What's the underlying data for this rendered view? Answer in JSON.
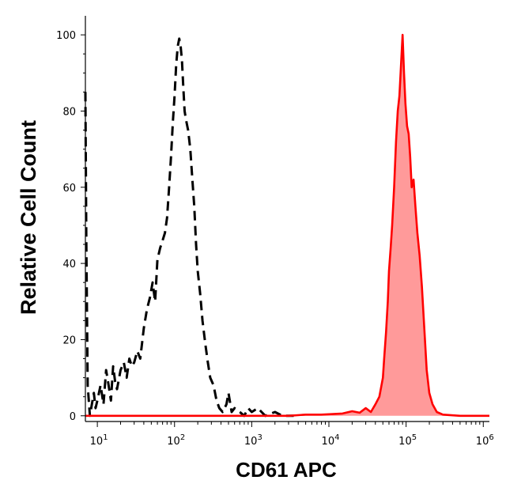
{
  "chart_data": {
    "type": "area",
    "title": "",
    "xlabel": "CD61 APC",
    "ylabel": "Relative Cell Count",
    "x_scale": "log",
    "xlim": [
      7,
      1200000
    ],
    "ylim": [
      -1.5,
      105
    ],
    "grid": false,
    "legend": "none",
    "x_ticks": [
      {
        "value": 10,
        "base": "10",
        "exp": "1"
      },
      {
        "value": 100,
        "base": "10",
        "exp": "2"
      },
      {
        "value": 1000,
        "base": "10",
        "exp": "3"
      },
      {
        "value": 10000,
        "base": "10",
        "exp": "4"
      },
      {
        "value": 100000,
        "base": "10",
        "exp": "5"
      },
      {
        "value": 1000000,
        "base": "10",
        "exp": "6"
      }
    ],
    "y_ticks": [
      {
        "value": 0,
        "label": "0"
      },
      {
        "value": 20,
        "label": "20"
      },
      {
        "value": 40,
        "label": "40"
      },
      {
        "value": 60,
        "label": "60"
      },
      {
        "value": 80,
        "label": "80"
      },
      {
        "value": 100,
        "label": "100"
      }
    ],
    "series": [
      {
        "style": "dashed",
        "color": "#000000",
        "points": [
          [
            7,
            85
          ],
          [
            7.2,
            45
          ],
          [
            7.5,
            8
          ],
          [
            8,
            0
          ],
          [
            8.5,
            3
          ],
          [
            9,
            6
          ],
          [
            9.5,
            2
          ],
          [
            10,
            4
          ],
          [
            11,
            8
          ],
          [
            12,
            3
          ],
          [
            13,
            12
          ],
          [
            14,
            8
          ],
          [
            15,
            4
          ],
          [
            16,
            13
          ],
          [
            17,
            9
          ],
          [
            18,
            7
          ],
          [
            20,
            12
          ],
          [
            22,
            14
          ],
          [
            24,
            10
          ],
          [
            26,
            15
          ],
          [
            28,
            13
          ],
          [
            30,
            14
          ],
          [
            33,
            17
          ],
          [
            36,
            15
          ],
          [
            40,
            23
          ],
          [
            44,
            28
          ],
          [
            48,
            31
          ],
          [
            52,
            35
          ],
          [
            56,
            30
          ],
          [
            60,
            41
          ],
          [
            65,
            44
          ],
          [
            70,
            46
          ],
          [
            75,
            48
          ],
          [
            80,
            52
          ],
          [
            85,
            60
          ],
          [
            90,
            68
          ],
          [
            95,
            77
          ],
          [
            100,
            84
          ],
          [
            105,
            92
          ],
          [
            110,
            97
          ],
          [
            115,
            99
          ],
          [
            120,
            97
          ],
          [
            125,
            93
          ],
          [
            130,
            86
          ],
          [
            135,
            80
          ],
          [
            140,
            78
          ],
          [
            150,
            75
          ],
          [
            160,
            70
          ],
          [
            170,
            62
          ],
          [
            180,
            55
          ],
          [
            190,
            45
          ],
          [
            200,
            38
          ],
          [
            215,
            32
          ],
          [
            230,
            25
          ],
          [
            250,
            19
          ],
          [
            270,
            14
          ],
          [
            290,
            10
          ],
          [
            320,
            8
          ],
          [
            350,
            4
          ],
          [
            380,
            2
          ],
          [
            420,
            1
          ],
          [
            470,
            3
          ],
          [
            500,
            6
          ],
          [
            550,
            1
          ],
          [
            600,
            2
          ],
          [
            700,
            1
          ],
          [
            800,
            0
          ],
          [
            900,
            2
          ],
          [
            1000,
            1
          ],
          [
            1200,
            2
          ],
          [
            1500,
            0
          ],
          [
            2000,
            1
          ],
          [
            2500,
            0
          ],
          [
            3500,
            0
          ]
        ]
      },
      {
        "style": "filled",
        "color": "#ff0000",
        "fill": "#ff9a9a",
        "points": [
          [
            7,
            0
          ],
          [
            1000,
            0
          ],
          [
            3000,
            0
          ],
          [
            5000,
            0.3
          ],
          [
            8000,
            0.3
          ],
          [
            15000,
            0.6
          ],
          [
            20000,
            1.2
          ],
          [
            25000,
            0.8
          ],
          [
            30000,
            2
          ],
          [
            35000,
            1
          ],
          [
            40000,
            3
          ],
          [
            45000,
            5
          ],
          [
            50000,
            10
          ],
          [
            52000,
            15
          ],
          [
            55000,
            22
          ],
          [
            58000,
            30
          ],
          [
            60000,
            38
          ],
          [
            63000,
            44
          ],
          [
            66000,
            50
          ],
          [
            70000,
            60
          ],
          [
            74000,
            72
          ],
          [
            78000,
            80
          ],
          [
            82000,
            84
          ],
          [
            86000,
            92
          ],
          [
            90000,
            100
          ],
          [
            94000,
            90
          ],
          [
            98000,
            82
          ],
          [
            103000,
            76
          ],
          [
            108000,
            74
          ],
          [
            113000,
            68
          ],
          [
            118000,
            60
          ],
          [
            125000,
            62
          ],
          [
            132000,
            55
          ],
          [
            140000,
            48
          ],
          [
            150000,
            42
          ],
          [
            160000,
            34
          ],
          [
            170000,
            25
          ],
          [
            185000,
            12
          ],
          [
            200000,
            6
          ],
          [
            220000,
            3
          ],
          [
            250000,
            1
          ],
          [
            300000,
            0.3
          ],
          [
            500000,
            0
          ],
          [
            1200000,
            0
          ]
        ]
      }
    ]
  }
}
